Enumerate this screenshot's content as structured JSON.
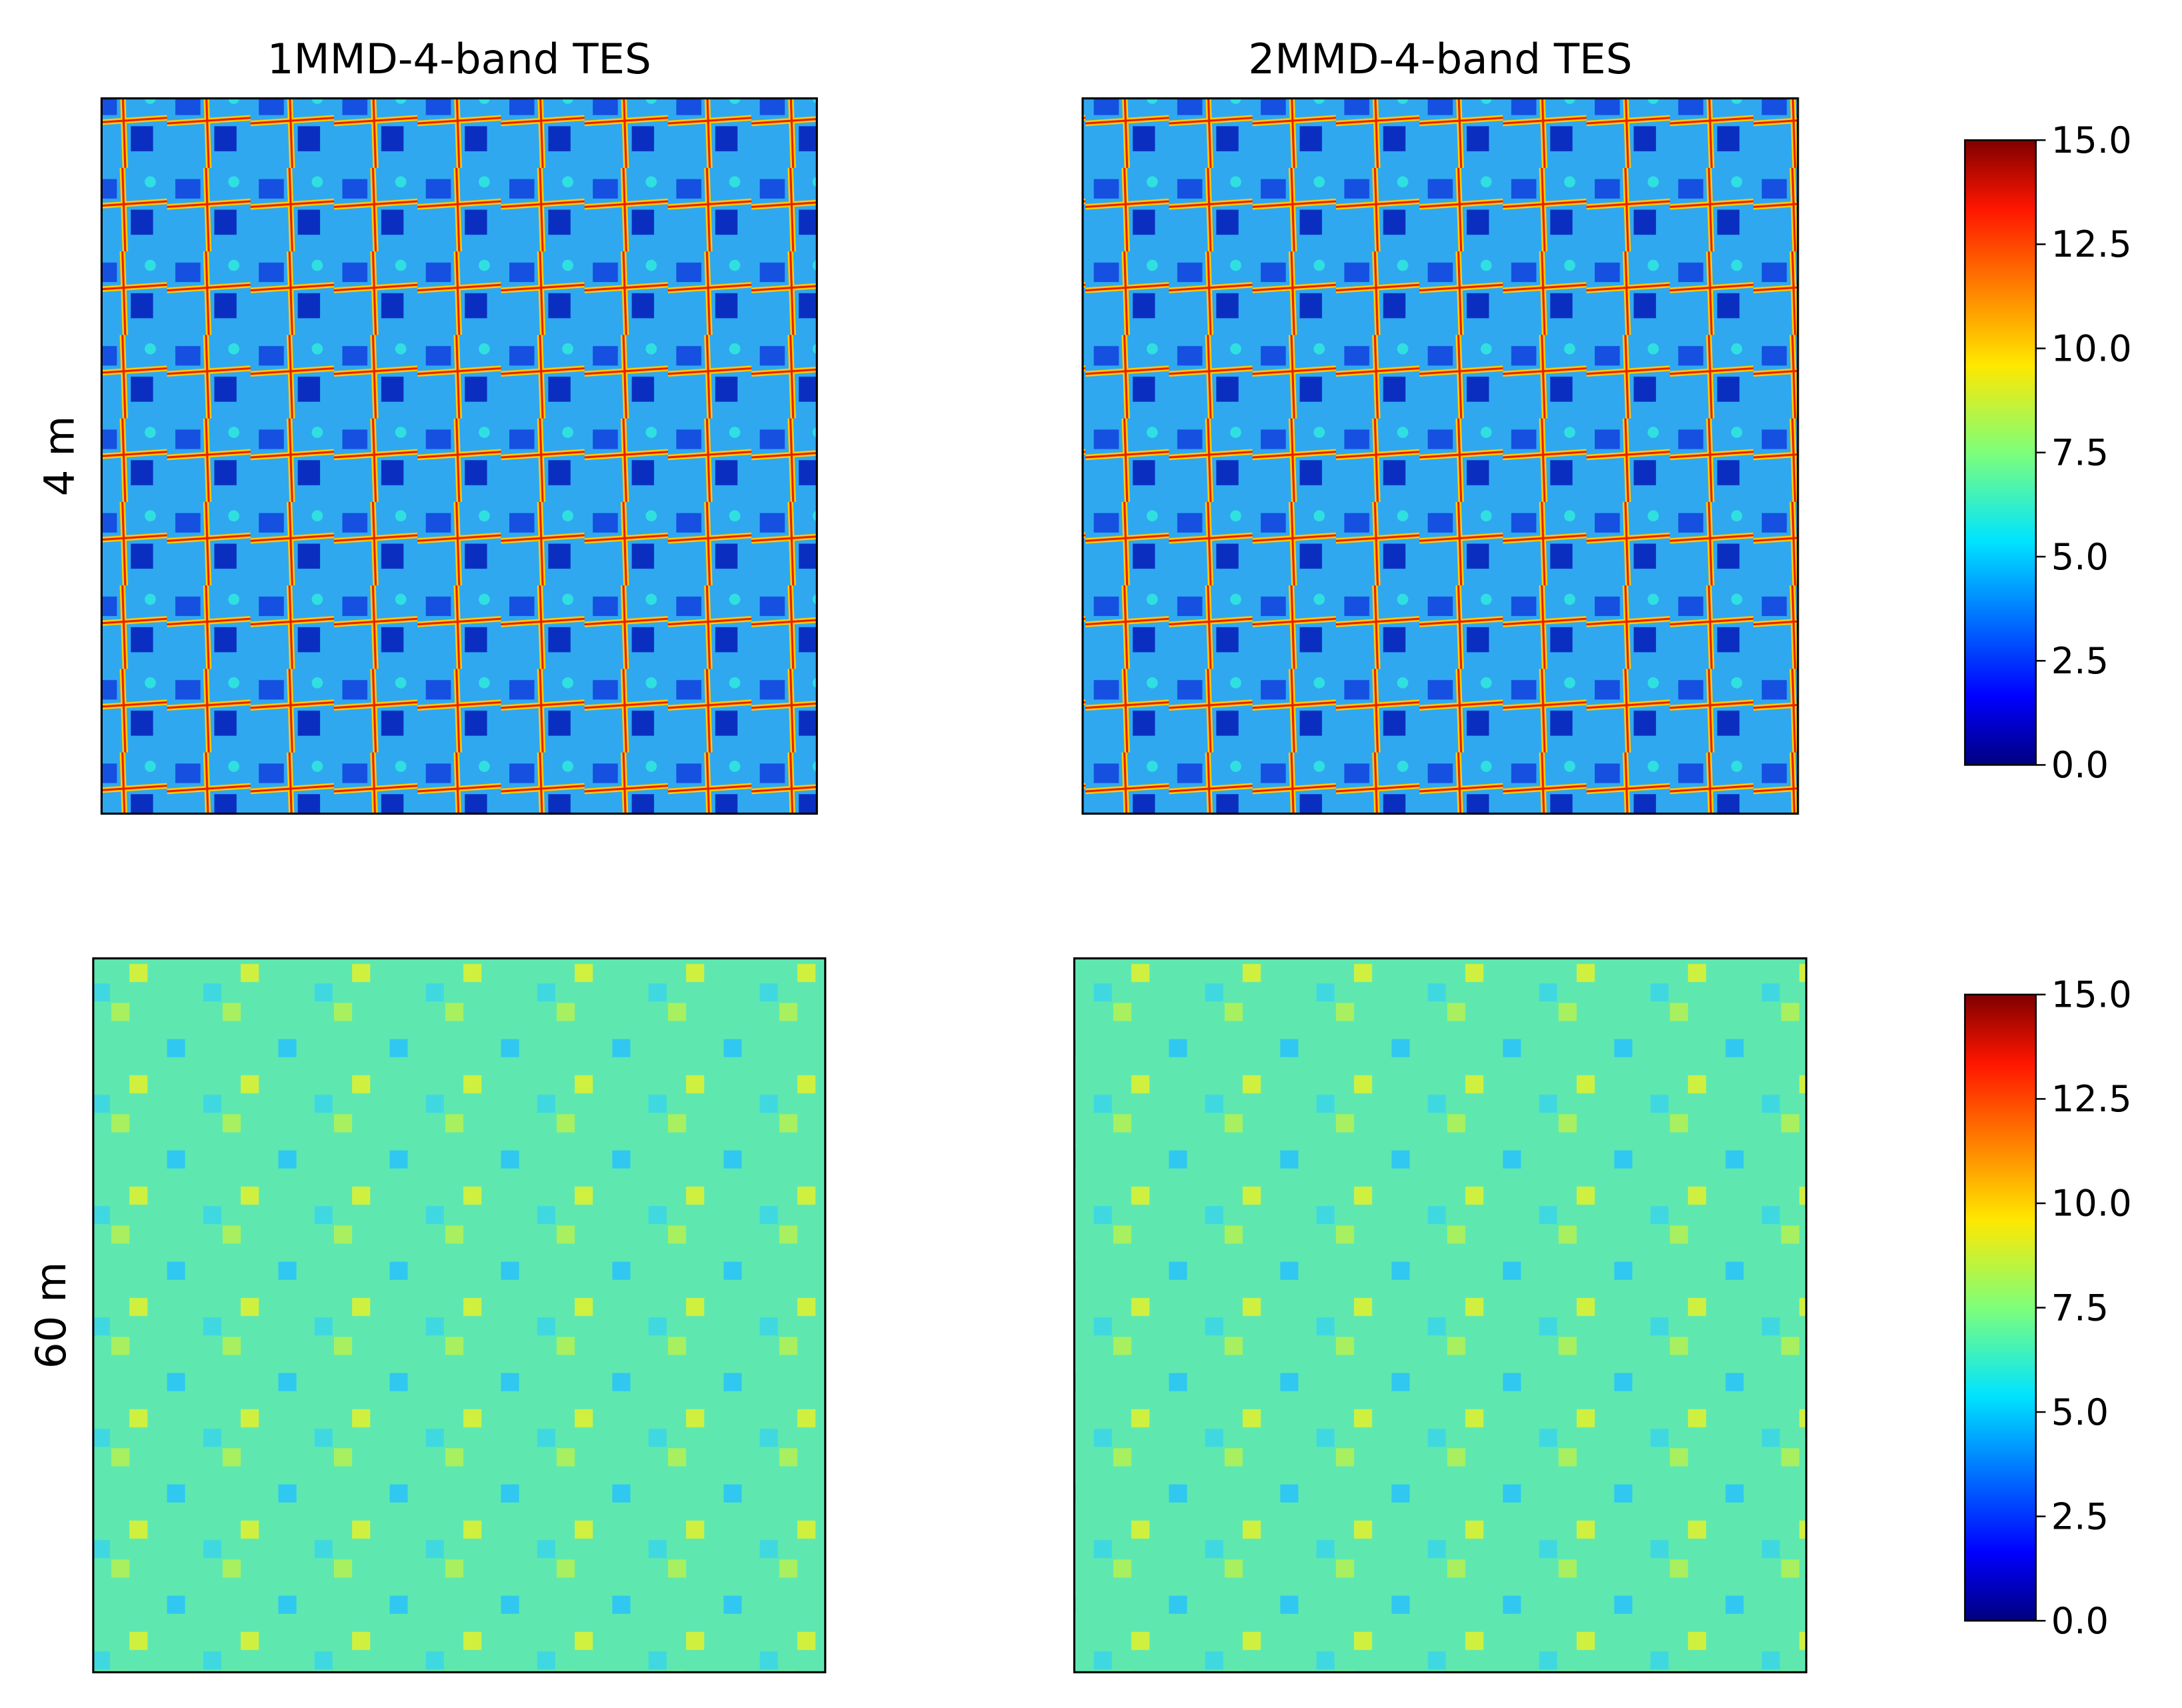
{
  "chart_data": [
    {
      "type": "heatmap",
      "title": "1MMD-4-band TES",
      "ylabel": "4 m",
      "colormap": "jet"
    },
    {
      "type": "heatmap",
      "title": "2MMD-4-band TES",
      "colormap": "jet",
      "colorbar": {
        "lim": [
          0,
          15
        ],
        "ticks": [
          {
            "value": 0,
            "label": "0.0"
          },
          2.5,
          {
            "value": 5,
            "label": "5.0"
          },
          7.5,
          {
            "value": 10,
            "label": "10.0"
          },
          12.5,
          {
            "value": 15,
            "label": "15.0"
          }
        ]
      }
    },
    {
      "type": "heatmap",
      "ylabel": "60 m",
      "colormap": "jet"
    },
    {
      "type": "heatmap",
      "colormap": "jet",
      "colorbar": {
        "lim": [
          0,
          15
        ],
        "ticks": [
          {
            "value": 0,
            "label": "0.0"
          },
          2.5,
          {
            "value": 5,
            "label": "5.0"
          },
          7.5,
          {
            "value": 10,
            "label": "10.0"
          },
          12.5,
          {
            "value": 15,
            "label": "15.0"
          }
        ]
      }
    }
  ]
}
